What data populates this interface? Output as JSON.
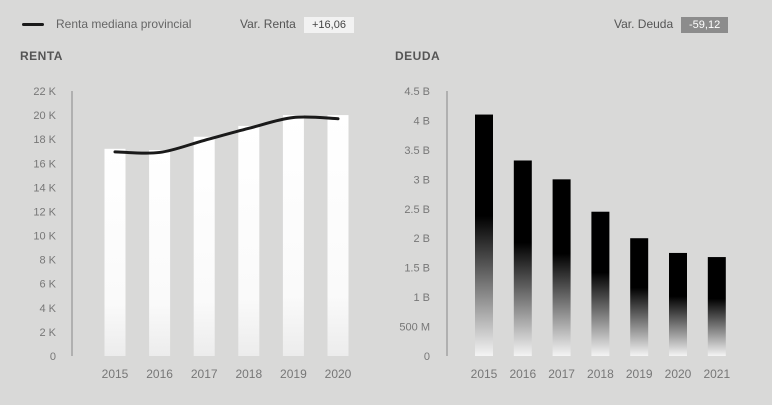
{
  "legend": {
    "label": "Renta mediana provincial",
    "line_color": "#1a1a1a"
  },
  "var_renta": {
    "label": "Var. Renta",
    "value": "+16,06"
  },
  "var_deuda": {
    "label": "Var. Deuda",
    "value": "-59,12"
  },
  "colors": {
    "background": "#d9d9d8",
    "axis": "#888888",
    "tick_text": "#777777",
    "badge_dark": "#8c8c8c"
  },
  "chart_data": [
    {
      "type": "bar",
      "title": "RENTA",
      "categories": [
        "2015",
        "2016",
        "2017",
        "2018",
        "2019",
        "2020"
      ],
      "values": [
        17200,
        17100,
        18200,
        19100,
        20000,
        20000
      ],
      "series": [
        {
          "name": "Renta mediana provincial",
          "type": "line",
          "values": [
            16950,
            16900,
            17900,
            18900,
            19800,
            19700
          ]
        }
      ],
      "ylim": [
        0,
        22000
      ],
      "yticks": [
        0,
        2000,
        4000,
        6000,
        8000,
        10000,
        12000,
        14000,
        16000,
        18000,
        20000,
        22000
      ],
      "ytick_labels": [
        "0",
        "2 K",
        "4 K",
        "6 K",
        "8 K",
        "10 K",
        "12 K",
        "14 K",
        "16 K",
        "18 K",
        "20 K",
        "22 K"
      ],
      "grid": false
    },
    {
      "type": "bar",
      "title": "DEUDA",
      "categories": [
        "2015",
        "2016",
        "2017",
        "2018",
        "2019",
        "2020",
        "2021"
      ],
      "values": [
        4100000000,
        3320000000,
        3000000000,
        2450000000,
        2000000000,
        1750000000,
        1680000000
      ],
      "ylim": [
        0,
        4500000000
      ],
      "yticks": [
        0,
        500000000,
        1000000000,
        1500000000,
        2000000000,
        2500000000,
        3000000000,
        3500000000,
        4000000000,
        4500000000
      ],
      "ytick_labels": [
        "0",
        "500 M",
        "1 B",
        "1.5 B",
        "2 B",
        "2.5 B",
        "3 B",
        "3.5 B",
        "4 B",
        "4.5 B"
      ],
      "grid": false
    }
  ]
}
